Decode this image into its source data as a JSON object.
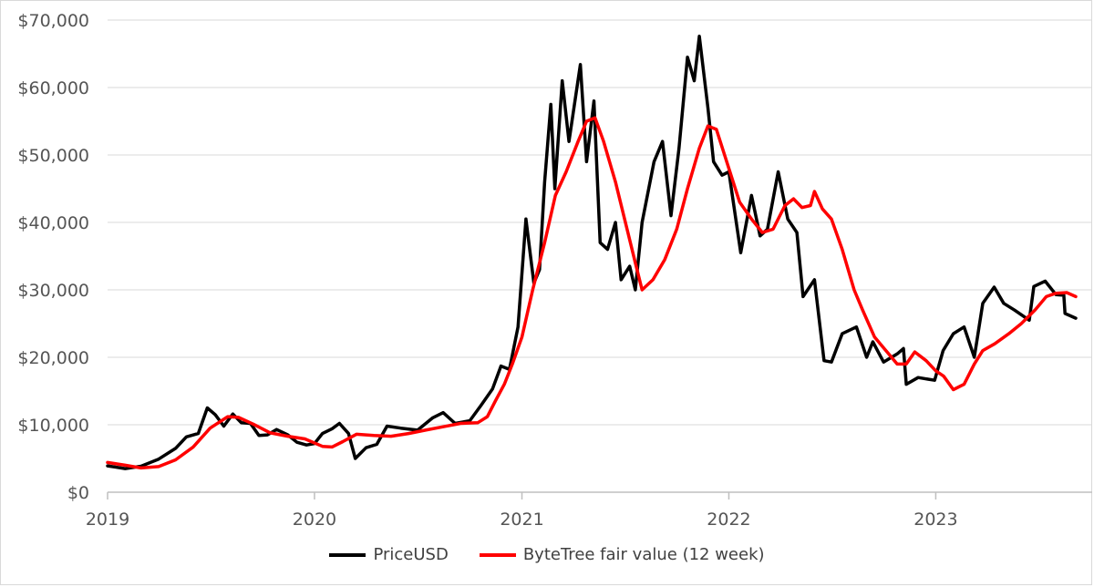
{
  "chart_data": {
    "type": "line",
    "title": "",
    "xlabel": "",
    "ylabel": "",
    "x_range": [
      "2019-01-01",
      "2023-09-05"
    ],
    "ylim": [
      0,
      70000
    ],
    "grid": true,
    "legend_position": "bottom",
    "x_ticks": [
      "2019",
      "2020",
      "2021",
      "2022",
      "2023"
    ],
    "y_ticks": [
      "$0",
      "$10,000",
      "$20,000",
      "$30,000",
      "$40,000",
      "$50,000",
      "$60,000",
      "$70,000"
    ],
    "series": [
      {
        "name": "PriceUSD",
        "color": "#000000",
        "points": [
          [
            "2019-01-01",
            3900
          ],
          [
            "2019-02-01",
            3500
          ],
          [
            "2019-03-01",
            3850
          ],
          [
            "2019-04-01",
            4900
          ],
          [
            "2019-05-01",
            6500
          ],
          [
            "2019-05-20",
            8200
          ],
          [
            "2019-06-10",
            8700
          ],
          [
            "2019-06-26",
            12500
          ],
          [
            "2019-07-10",
            11500
          ],
          [
            "2019-07-25",
            9800
          ],
          [
            "2019-08-10",
            11600
          ],
          [
            "2019-08-25",
            10300
          ],
          [
            "2019-09-10",
            10200
          ],
          [
            "2019-09-25",
            8400
          ],
          [
            "2019-10-10",
            8500
          ],
          [
            "2019-10-26",
            9300
          ],
          [
            "2019-11-15",
            8500
          ],
          [
            "2019-12-01",
            7400
          ],
          [
            "2019-12-18",
            7000
          ],
          [
            "2020-01-01",
            7200
          ],
          [
            "2020-01-15",
            8700
          ],
          [
            "2020-02-01",
            9400
          ],
          [
            "2020-02-14",
            10200
          ],
          [
            "2020-03-01",
            8700
          ],
          [
            "2020-03-13",
            5000
          ],
          [
            "2020-04-01",
            6600
          ],
          [
            "2020-04-20",
            7100
          ],
          [
            "2020-05-08",
            9800
          ],
          [
            "2020-06-01",
            9500
          ],
          [
            "2020-07-01",
            9200
          ],
          [
            "2020-07-27",
            11000
          ],
          [
            "2020-08-15",
            11800
          ],
          [
            "2020-09-05",
            10200
          ],
          [
            "2020-10-01",
            10600
          ],
          [
            "2020-10-21",
            12900
          ],
          [
            "2020-11-10",
            15300
          ],
          [
            "2020-11-25",
            18700
          ],
          [
            "2020-12-10",
            18200
          ],
          [
            "2020-12-25",
            24500
          ],
          [
            "2021-01-08",
            40500
          ],
          [
            "2021-01-22",
            31000
          ],
          [
            "2021-02-01",
            33000
          ],
          [
            "2021-02-10",
            46000
          ],
          [
            "2021-02-21",
            57500
          ],
          [
            "2021-02-28",
            45000
          ],
          [
            "2021-03-13",
            61000
          ],
          [
            "2021-03-25",
            52000
          ],
          [
            "2021-04-14",
            63400
          ],
          [
            "2021-04-25",
            49000
          ],
          [
            "2021-05-08",
            58000
          ],
          [
            "2021-05-19",
            37000
          ],
          [
            "2021-06-01",
            36000
          ],
          [
            "2021-06-15",
            40000
          ],
          [
            "2021-06-25",
            31500
          ],
          [
            "2021-07-10",
            33500
          ],
          [
            "2021-07-20",
            30000
          ],
          [
            "2021-08-01",
            40000
          ],
          [
            "2021-08-22",
            49000
          ],
          [
            "2021-09-06",
            52000
          ],
          [
            "2021-09-21",
            41000
          ],
          [
            "2021-10-05",
            51000
          ],
          [
            "2021-10-20",
            64500
          ],
          [
            "2021-11-01",
            61000
          ],
          [
            "2021-11-10",
            67600
          ],
          [
            "2021-11-25",
            57000
          ],
          [
            "2021-12-05",
            49000
          ],
          [
            "2021-12-20",
            47000
          ],
          [
            "2022-01-01",
            47500
          ],
          [
            "2022-01-22",
            35500
          ],
          [
            "2022-02-10",
            44000
          ],
          [
            "2022-02-25",
            38000
          ],
          [
            "2022-03-10",
            39000
          ],
          [
            "2022-03-29",
            47500
          ],
          [
            "2022-04-15",
            40500
          ],
          [
            "2022-05-01",
            38500
          ],
          [
            "2022-05-12",
            29000
          ],
          [
            "2022-06-01",
            31500
          ],
          [
            "2022-06-18",
            19500
          ],
          [
            "2022-07-01",
            19300
          ],
          [
            "2022-07-20",
            23500
          ],
          [
            "2022-08-14",
            24500
          ],
          [
            "2022-09-01",
            20000
          ],
          [
            "2022-09-12",
            22300
          ],
          [
            "2022-10-01",
            19300
          ],
          [
            "2022-10-25",
            20500
          ],
          [
            "2022-11-05",
            21300
          ],
          [
            "2022-11-10",
            16000
          ],
          [
            "2022-12-01",
            17000
          ],
          [
            "2022-12-30",
            16600
          ],
          [
            "2023-01-14",
            21000
          ],
          [
            "2023-02-01",
            23500
          ],
          [
            "2023-02-20",
            24500
          ],
          [
            "2023-03-10",
            20000
          ],
          [
            "2023-03-25",
            28000
          ],
          [
            "2023-04-14",
            30400
          ],
          [
            "2023-05-01",
            28000
          ],
          [
            "2023-05-20",
            27000
          ],
          [
            "2023-06-15",
            25500
          ],
          [
            "2023-06-23",
            30500
          ],
          [
            "2023-07-13",
            31300
          ],
          [
            "2023-08-01",
            29300
          ],
          [
            "2023-08-15",
            29200
          ],
          [
            "2023-08-17",
            26500
          ],
          [
            "2023-09-05",
            25800
          ]
        ]
      },
      {
        "name": "ByteTree fair value (12 week)",
        "color": "#ff0000",
        "points": [
          [
            "2019-01-01",
            4400
          ],
          [
            "2019-02-01",
            4000
          ],
          [
            "2019-03-01",
            3600
          ],
          [
            "2019-04-01",
            3800
          ],
          [
            "2019-05-01",
            4800
          ],
          [
            "2019-06-01",
            6700
          ],
          [
            "2019-07-01",
            9500
          ],
          [
            "2019-08-01",
            11200
          ],
          [
            "2019-08-20",
            11100
          ],
          [
            "2019-09-15",
            10100
          ],
          [
            "2019-10-15",
            8800
          ],
          [
            "2019-11-15",
            8300
          ],
          [
            "2019-12-15",
            7900
          ],
          [
            "2020-01-15",
            6800
          ],
          [
            "2020-02-01",
            6700
          ],
          [
            "2020-02-20",
            7500
          ],
          [
            "2020-03-15",
            8600
          ],
          [
            "2020-04-15",
            8400
          ],
          [
            "2020-05-15",
            8300
          ],
          [
            "2020-06-15",
            8700
          ],
          [
            "2020-07-15",
            9200
          ],
          [
            "2020-08-15",
            9700
          ],
          [
            "2020-09-15",
            10200
          ],
          [
            "2020-10-15",
            10300
          ],
          [
            "2020-11-01",
            11200
          ],
          [
            "2020-11-15",
            13500
          ],
          [
            "2020-12-01",
            16000
          ],
          [
            "2020-12-15",
            19000
          ],
          [
            "2021-01-01",
            23000
          ],
          [
            "2021-01-20",
            30000
          ],
          [
            "2021-02-10",
            37000
          ],
          [
            "2021-03-01",
            44000
          ],
          [
            "2021-03-20",
            47500
          ],
          [
            "2021-04-10",
            52000
          ],
          [
            "2021-04-25",
            55000
          ],
          [
            "2021-05-10",
            55500
          ],
          [
            "2021-05-25",
            52000
          ],
          [
            "2021-06-15",
            46000
          ],
          [
            "2021-07-01",
            40500
          ],
          [
            "2021-07-20",
            34000
          ],
          [
            "2021-08-01",
            30000
          ],
          [
            "2021-08-20",
            31500
          ],
          [
            "2021-09-10",
            34500
          ],
          [
            "2021-10-01",
            39000
          ],
          [
            "2021-10-20",
            45000
          ],
          [
            "2021-11-10",
            51000
          ],
          [
            "2021-11-25",
            54300
          ],
          [
            "2021-12-10",
            53800
          ],
          [
            "2022-01-01",
            48000
          ],
          [
            "2022-01-20",
            43000
          ],
          [
            "2022-02-10",
            40500
          ],
          [
            "2022-03-01",
            38500
          ],
          [
            "2022-03-20",
            39000
          ],
          [
            "2022-04-10",
            42500
          ],
          [
            "2022-04-25",
            43500
          ],
          [
            "2022-05-10",
            42200
          ],
          [
            "2022-05-25",
            42500
          ],
          [
            "2022-06-01",
            44600
          ],
          [
            "2022-06-15",
            42000
          ],
          [
            "2022-07-01",
            40500
          ],
          [
            "2022-07-20",
            36000
          ],
          [
            "2022-08-10",
            30000
          ],
          [
            "2022-08-25",
            27000
          ],
          [
            "2022-09-15",
            23000
          ],
          [
            "2022-10-10",
            20500
          ],
          [
            "2022-10-25",
            19000
          ],
          [
            "2022-11-10",
            19000
          ],
          [
            "2022-11-25",
            20800
          ],
          [
            "2022-12-15",
            19500
          ],
          [
            "2023-01-01",
            18000
          ],
          [
            "2023-01-15",
            17200
          ],
          [
            "2023-02-01",
            15200
          ],
          [
            "2023-02-20",
            16000
          ],
          [
            "2023-03-10",
            19000
          ],
          [
            "2023-03-25",
            21000
          ],
          [
            "2023-04-15",
            22000
          ],
          [
            "2023-05-10",
            23500
          ],
          [
            "2023-06-01",
            25000
          ],
          [
            "2023-06-25",
            27000
          ],
          [
            "2023-07-15",
            29000
          ],
          [
            "2023-08-01",
            29500
          ],
          [
            "2023-08-20",
            29600
          ],
          [
            "2023-09-05",
            29000
          ]
        ]
      }
    ]
  }
}
